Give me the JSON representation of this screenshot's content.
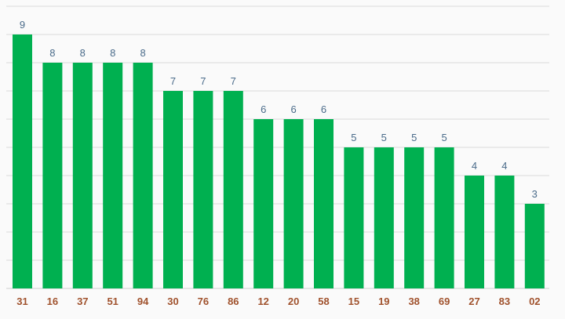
{
  "chart_data": {
    "type": "bar",
    "categories": [
      "31",
      "16",
      "37",
      "51",
      "94",
      "30",
      "76",
      "86",
      "12",
      "20",
      "58",
      "15",
      "19",
      "38",
      "69",
      "27",
      "83",
      "02"
    ],
    "values": [
      9,
      8,
      8,
      8,
      8,
      7,
      7,
      7,
      6,
      6,
      6,
      5,
      5,
      5,
      5,
      4,
      4,
      3
    ],
    "title": "",
    "xlabel": "",
    "ylabel": "",
    "ylim": [
      0,
      10
    ],
    "grid": true,
    "legend": "none",
    "colors": {
      "bar": "#00b050",
      "value_label": "#4a6b8a",
      "tick_label": "#a0522d",
      "grid": "#d9d9d9",
      "background": "#fafafa"
    }
  }
}
